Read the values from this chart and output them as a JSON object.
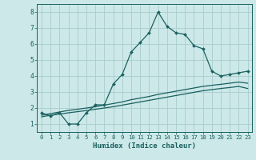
{
  "xlabel": "Humidex (Indice chaleur)",
  "bg_color": "#cce8e8",
  "grid_color": "#aacccc",
  "line_color": "#1a6060",
  "spine_color": "#1a6060",
  "xlim": [
    -0.5,
    23.5
  ],
  "ylim": [
    0.5,
    8.5
  ],
  "xticks": [
    0,
    1,
    2,
    3,
    4,
    5,
    6,
    7,
    8,
    9,
    10,
    11,
    12,
    13,
    14,
    15,
    16,
    17,
    18,
    19,
    20,
    21,
    22,
    23
  ],
  "yticks": [
    1,
    2,
    3,
    4,
    5,
    6,
    7,
    8
  ],
  "line1_x": [
    0,
    1,
    2,
    3,
    4,
    5,
    6,
    7,
    8,
    9,
    10,
    11,
    12,
    13,
    14,
    15,
    16,
    17,
    18,
    19,
    20,
    21,
    22,
    23
  ],
  "line1_y": [
    1.7,
    1.5,
    1.7,
    1.0,
    1.0,
    1.7,
    2.2,
    2.2,
    3.5,
    4.1,
    5.5,
    6.1,
    6.7,
    8.0,
    7.1,
    6.7,
    6.6,
    5.9,
    5.7,
    4.3,
    4.0,
    4.1,
    4.2,
    4.3
  ],
  "line2_x": [
    0,
    1,
    2,
    3,
    4,
    5,
    6,
    7,
    8,
    9,
    10,
    11,
    12,
    13,
    14,
    15,
    16,
    17,
    18,
    19,
    20,
    21,
    22,
    23
  ],
  "line2_y": [
    1.55,
    1.65,
    1.75,
    1.85,
    1.92,
    2.0,
    2.08,
    2.18,
    2.28,
    2.38,
    2.52,
    2.62,
    2.72,
    2.85,
    2.95,
    3.05,
    3.15,
    3.25,
    3.35,
    3.42,
    3.48,
    3.55,
    3.62,
    3.55
  ],
  "line3_x": [
    0,
    1,
    2,
    3,
    4,
    5,
    6,
    7,
    8,
    9,
    10,
    11,
    12,
    13,
    14,
    15,
    16,
    17,
    18,
    19,
    20,
    21,
    22,
    23
  ],
  "line3_y": [
    1.45,
    1.55,
    1.62,
    1.7,
    1.77,
    1.84,
    1.92,
    2.0,
    2.08,
    2.18,
    2.28,
    2.38,
    2.48,
    2.58,
    2.68,
    2.78,
    2.88,
    2.98,
    3.08,
    3.15,
    3.22,
    3.28,
    3.35,
    3.22
  ]
}
